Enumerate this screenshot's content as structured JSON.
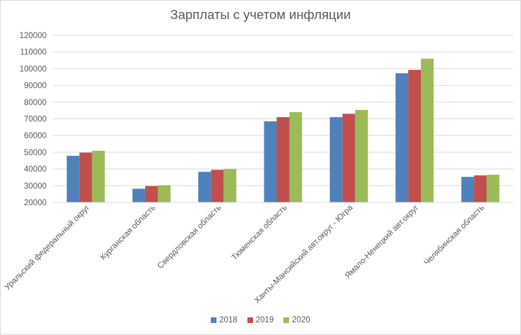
{
  "chart_data": {
    "type": "bar",
    "title": "Зарплаты с учетом инфляции",
    "xlabel": "",
    "ylabel": "",
    "categories": [
      "Уральский федеральный округ",
      "Курганская область",
      "Свердловская область",
      "Тюменская область",
      "Ханты-Мансийский авт.округ - Югра",
      "Ямало-Ненецкий авт.округ",
      "Челябинская область"
    ],
    "series": [
      {
        "name": "2018",
        "color": "#4f81bd",
        "values": [
          47900,
          28200,
          38300,
          68500,
          71000,
          97300,
          35300
        ]
      },
      {
        "name": "2019",
        "color": "#c0504d",
        "values": [
          49800,
          29800,
          39500,
          71000,
          73000,
          99300,
          36200
        ]
      },
      {
        "name": "2020",
        "color": "#9bbb59",
        "values": [
          50900,
          30300,
          40000,
          74000,
          75300,
          106000,
          36600
        ]
      }
    ],
    "ylim": [
      20000,
      120000
    ],
    "yticks": [
      20000,
      30000,
      40000,
      50000,
      60000,
      70000,
      80000,
      90000,
      100000,
      110000,
      120000
    ],
    "grid": true,
    "legend_position": "bottom"
  }
}
